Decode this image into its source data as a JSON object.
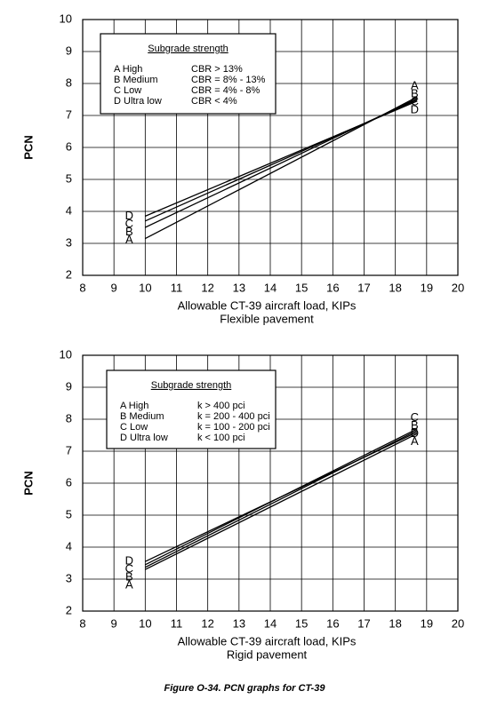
{
  "caption": "Figure O-34.  PCN graphs for CT-39",
  "chart_data": [
    {
      "type": "line",
      "x_label": "Allowable CT-39 aircraft load, KIPs",
      "x_sublabel": "Flexible pavement",
      "y_label": "PCN",
      "xlim": [
        8,
        20
      ],
      "ylim": [
        2,
        10
      ],
      "xticks": [
        8,
        9,
        10,
        11,
        12,
        13,
        14,
        15,
        16,
        17,
        18,
        19,
        20
      ],
      "yticks": [
        2,
        3,
        4,
        5,
        6,
        7,
        8,
        9,
        10
      ],
      "grid": true,
      "legend": {
        "title": "Subgrade strength",
        "rows": [
          [
            "A  High",
            "CBR > 13%"
          ],
          [
            "B  Medium",
            "CBR = 8% - 13%"
          ],
          [
            "C  Low",
            "CBR = 4% - 8%"
          ],
          [
            "D  Ultra low",
            "CBR < 4%"
          ]
        ]
      },
      "x": [
        10,
        18.7
      ],
      "series": [
        {
          "name": "A",
          "color": "#000000",
          "values": [
            3.15,
            7.58
          ]
        },
        {
          "name": "B",
          "color": "#000000",
          "values": [
            3.5,
            7.53
          ]
        },
        {
          "name": "C",
          "color": "#000000",
          "values": [
            3.7,
            7.49
          ]
        },
        {
          "name": "D",
          "color": "#000000",
          "values": [
            3.85,
            7.45
          ]
        }
      ]
    },
    {
      "type": "line",
      "x_label": "Allowable CT-39 aircraft load, KIPs",
      "x_sublabel": "Rigid pavement",
      "y_label": "PCN",
      "xlim": [
        8,
        20
      ],
      "ylim": [
        2,
        10
      ],
      "xticks": [
        8,
        9,
        10,
        11,
        12,
        13,
        14,
        15,
        16,
        17,
        18,
        19,
        20
      ],
      "yticks": [
        2,
        3,
        4,
        5,
        6,
        7,
        8,
        9,
        10
      ],
      "grid": true,
      "legend": {
        "title": "Subgrade strength",
        "rows": [
          [
            "A  High",
            "k > 400 pci"
          ],
          [
            "B  Medium",
            "k = 200 - 400 pci"
          ],
          [
            "C  Low",
            "k = 100 - 200 pci"
          ],
          [
            "D  Ultra low",
            "k < 100 pci"
          ]
        ]
      },
      "x": [
        10,
        18.7
      ],
      "series": [
        {
          "name": "A",
          "color": "#000000",
          "values": [
            3.3,
            7.55
          ]
        },
        {
          "name": "B",
          "color": "#000000",
          "values": [
            3.37,
            7.65
          ]
        },
        {
          "name": "C",
          "color": "#000000",
          "values": [
            3.45,
            7.7
          ]
        },
        {
          "name": "D",
          "color": "#000000",
          "values": [
            3.55,
            7.6
          ]
        }
      ]
    }
  ]
}
